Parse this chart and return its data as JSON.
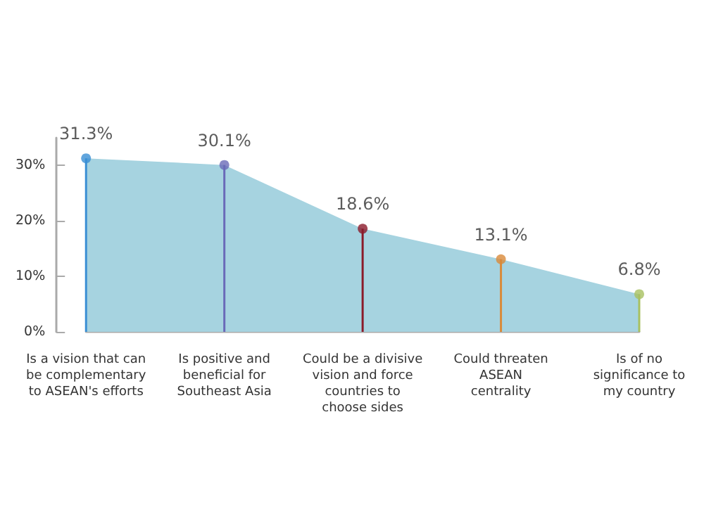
{
  "chart_data": {
    "type": "area",
    "categories": [
      "Is a vision that can\nbe complementary\nto ASEAN's efforts",
      "Is positive and\nbeneficial for\nSoutheast Asia",
      "Could be a divisive\nvision and force\ncountries to\nchoose sides",
      "Could threaten\nASEAN\ncentrality",
      "Is of no\nsignificance to\nmy country"
    ],
    "series": [
      {
        "color": "#a6d3e0",
        "values": [
          31.3,
          30.1,
          18.6,
          13.1,
          6.8
        ]
      },
      {
        "type": "lollipop",
        "marker": "circle",
        "colors": [
          "#3a8fd4",
          "#6a6ab8",
          "#8b1a2a",
          "#d98a3a",
          "#a8c060"
        ],
        "values": [
          31.3,
          30.1,
          18.6,
          13.1,
          6.8
        ],
        "value_labels": [
          "31.3%",
          "30.1%",
          "18.6%",
          "13.1%",
          "6.8%"
        ]
      }
    ],
    "ylim": [
      0,
      35
    ],
    "yticks": [
      {
        "value": 0,
        "label": "0%"
      },
      {
        "value": 10,
        "label": "10%"
      },
      {
        "value": 20,
        "label": "20%"
      },
      {
        "value": 30,
        "label": "30%"
      }
    ],
    "grid": false
  }
}
